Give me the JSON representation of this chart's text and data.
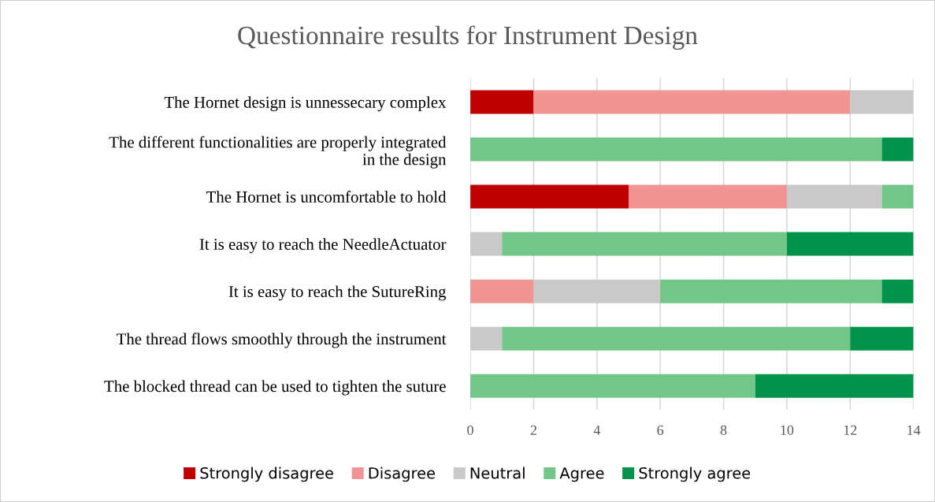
{
  "chart_data": {
    "type": "bar",
    "orientation": "horizontal",
    "stacked": true,
    "title": "Questionnaire results for Instrument Design",
    "categories": [
      "The Hornet design is unnessecary complex",
      "The different functionalities are properly integrated\nin the design",
      "The Hornet is uncomfortable to hold",
      "It is easy to reach the NeedleActuator",
      "It is easy to reach the SutureRing",
      "The thread flows smoothly through the instrument",
      "The blocked thread can be used to tighten the suture"
    ],
    "series": [
      {
        "name": "Strongly disagree",
        "color": "#c00000",
        "values": [
          2,
          0,
          5,
          0,
          0,
          0,
          0
        ]
      },
      {
        "name": "Disagree",
        "color": "#f09494",
        "values": [
          10,
          0,
          5,
          0,
          2,
          0,
          0
        ]
      },
      {
        "name": "Neutral",
        "color": "#c9c9c9",
        "values": [
          2,
          0,
          3,
          1,
          4,
          1,
          0
        ]
      },
      {
        "name": "Agree",
        "color": "#72c687",
        "values": [
          0,
          13,
          1,
          9,
          7,
          11,
          9
        ]
      },
      {
        "name": "Strongly agree",
        "color": "#00944a",
        "values": [
          0,
          1,
          0,
          4,
          1,
          2,
          5
        ]
      }
    ],
    "xlim": [
      0,
      14
    ],
    "xticks": [
      0,
      2,
      4,
      6,
      8,
      10,
      12,
      14
    ],
    "grid": "x",
    "legend": "bottom"
  }
}
